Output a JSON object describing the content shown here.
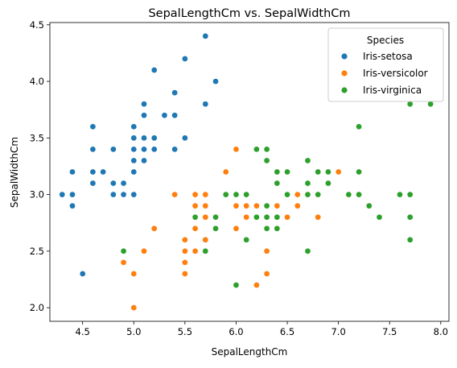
{
  "chart_data": {
    "type": "scatter",
    "title": "SepalLengthCm vs. SepalWidthCm",
    "xlabel": "SepalLengthCm",
    "ylabel": "SepalWidthCm",
    "xlim": [
      4.18,
      8.08
    ],
    "ylim": [
      1.88,
      4.52
    ],
    "xticks": [
      "4.5",
      "5.0",
      "5.5",
      "6.0",
      "6.5",
      "7.0",
      "7.5",
      "8.0"
    ],
    "yticks": [
      "2.0",
      "2.5",
      "3.0",
      "3.5",
      "4.0",
      "4.5"
    ],
    "grid": false,
    "legend": {
      "title": "Species",
      "placement": "top-right"
    },
    "series": [
      {
        "name": "Iris-setosa",
        "color": "#1f77b4",
        "points": [
          [
            4.3,
            3.0
          ],
          [
            4.4,
            3.2
          ],
          [
            4.4,
            3.0
          ],
          [
            4.4,
            2.9
          ],
          [
            4.5,
            2.3
          ],
          [
            4.6,
            3.6
          ],
          [
            4.6,
            3.4
          ],
          [
            4.6,
            3.2
          ],
          [
            4.6,
            3.1
          ],
          [
            4.7,
            3.2
          ],
          [
            4.8,
            3.4
          ],
          [
            4.8,
            3.1
          ],
          [
            4.8,
            3.0
          ],
          [
            4.9,
            3.1
          ],
          [
            4.9,
            3.0
          ],
          [
            5.0,
            3.6
          ],
          [
            5.0,
            3.5
          ],
          [
            5.0,
            3.4
          ],
          [
            5.0,
            3.3
          ],
          [
            5.0,
            3.2
          ],
          [
            5.0,
            3.0
          ],
          [
            5.1,
            3.8
          ],
          [
            5.1,
            3.7
          ],
          [
            5.1,
            3.5
          ],
          [
            5.1,
            3.4
          ],
          [
            5.1,
            3.3
          ],
          [
            5.2,
            4.1
          ],
          [
            5.2,
            3.5
          ],
          [
            5.2,
            3.4
          ],
          [
            5.3,
            3.7
          ],
          [
            5.4,
            3.9
          ],
          [
            5.4,
            3.7
          ],
          [
            5.4,
            3.4
          ],
          [
            5.5,
            4.2
          ],
          [
            5.5,
            3.5
          ],
          [
            5.7,
            4.4
          ],
          [
            5.7,
            3.8
          ],
          [
            5.8,
            4.0
          ]
        ]
      },
      {
        "name": "Iris-versicolor",
        "color": "#ff7f0e",
        "points": [
          [
            4.9,
            2.4
          ],
          [
            5.0,
            2.0
          ],
          [
            5.0,
            2.3
          ],
          [
            5.1,
            2.5
          ],
          [
            5.2,
            2.7
          ],
          [
            5.4,
            3.0
          ],
          [
            5.5,
            2.6
          ],
          [
            5.5,
            2.5
          ],
          [
            5.5,
            2.4
          ],
          [
            5.5,
            2.3
          ],
          [
            5.6,
            3.0
          ],
          [
            5.6,
            2.9
          ],
          [
            5.6,
            2.7
          ],
          [
            5.6,
            2.5
          ],
          [
            5.7,
            3.0
          ],
          [
            5.7,
            2.9
          ],
          [
            5.7,
            2.8
          ],
          [
            5.7,
            2.6
          ],
          [
            5.8,
            2.7
          ],
          [
            5.9,
            3.2
          ],
          [
            5.9,
            3.0
          ],
          [
            6.0,
            3.4
          ],
          [
            6.0,
            2.9
          ],
          [
            6.0,
            2.7
          ],
          [
            6.0,
            2.2
          ],
          [
            6.1,
            3.0
          ],
          [
            6.1,
            2.9
          ],
          [
            6.1,
            2.8
          ],
          [
            6.2,
            2.9
          ],
          [
            6.2,
            2.2
          ],
          [
            6.3,
            3.3
          ],
          [
            6.3,
            2.5
          ],
          [
            6.3,
            2.3
          ],
          [
            6.4,
            2.9
          ],
          [
            6.5,
            2.8
          ],
          [
            6.6,
            3.0
          ],
          [
            6.6,
            2.9
          ],
          [
            6.7,
            3.1
          ],
          [
            6.7,
            3.0
          ],
          [
            6.8,
            2.8
          ],
          [
            6.9,
            3.1
          ],
          [
            7.0,
            3.2
          ]
        ]
      },
      {
        "name": "Iris-virginica",
        "color": "#2ca02c",
        "points": [
          [
            4.9,
            2.5
          ],
          [
            5.6,
            2.8
          ],
          [
            5.7,
            2.5
          ],
          [
            5.8,
            2.8
          ],
          [
            5.8,
            2.7
          ],
          [
            5.9,
            3.0
          ],
          [
            6.0,
            3.0
          ],
          [
            6.0,
            2.2
          ],
          [
            6.1,
            3.0
          ],
          [
            6.1,
            2.6
          ],
          [
            6.2,
            3.4
          ],
          [
            6.2,
            2.8
          ],
          [
            6.3,
            3.4
          ],
          [
            6.3,
            3.3
          ],
          [
            6.3,
            2.9
          ],
          [
            6.3,
            2.8
          ],
          [
            6.3,
            2.7
          ],
          [
            6.4,
            3.2
          ],
          [
            6.4,
            3.1
          ],
          [
            6.4,
            2.8
          ],
          [
            6.4,
            2.7
          ],
          [
            6.5,
            3.2
          ],
          [
            6.5,
            3.0
          ],
          [
            6.7,
            3.3
          ],
          [
            6.7,
            3.1
          ],
          [
            6.7,
            3.0
          ],
          [
            6.7,
            2.5
          ],
          [
            6.8,
            3.2
          ],
          [
            6.8,
            3.0
          ],
          [
            6.9,
            3.2
          ],
          [
            6.9,
            3.1
          ],
          [
            7.1,
            3.0
          ],
          [
            7.2,
            3.6
          ],
          [
            7.2,
            3.2
          ],
          [
            7.2,
            3.0
          ],
          [
            7.3,
            2.9
          ],
          [
            7.4,
            2.8
          ],
          [
            7.6,
            3.0
          ],
          [
            7.7,
            3.8
          ],
          [
            7.7,
            3.0
          ],
          [
            7.7,
            2.8
          ],
          [
            7.7,
            2.6
          ],
          [
            7.9,
            3.8
          ]
        ]
      }
    ]
  }
}
